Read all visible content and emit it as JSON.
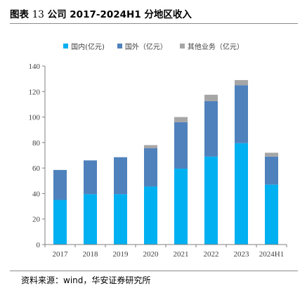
{
  "figure": {
    "label": "图表",
    "number": "13",
    "title": "公司 2017-2024H1 分地区收入"
  },
  "source": "资料来源：wind，华安证券研究所",
  "colors": {
    "domestic": "#00b0f0",
    "overseas": "#4f81bd",
    "other": "#a6a6a6",
    "axis": "#808080"
  },
  "chart_data": {
    "type": "bar",
    "stacked": true,
    "categories": [
      "2017",
      "2018",
      "2019",
      "2020",
      "2021",
      "2022",
      "2023",
      "2024H1"
    ],
    "series": [
      {
        "name": "国内(亿元)",
        "values": [
          35,
          39.5,
          39.5,
          45.5,
          59.5,
          69,
          79.5,
          47
        ]
      },
      {
        "name": "国外（亿元）",
        "values": [
          23.5,
          26.5,
          29,
          30,
          36.5,
          43.5,
          45.5,
          22
        ]
      },
      {
        "name": "其他业务（亿元）",
        "values": [
          0,
          0,
          0,
          2.5,
          4,
          5,
          4,
          3
        ]
      }
    ],
    "ylim": [
      0,
      140
    ],
    "yticks": [
      0,
      20,
      40,
      60,
      80,
      100,
      120,
      140
    ],
    "grid": false,
    "legend_position": "top"
  }
}
